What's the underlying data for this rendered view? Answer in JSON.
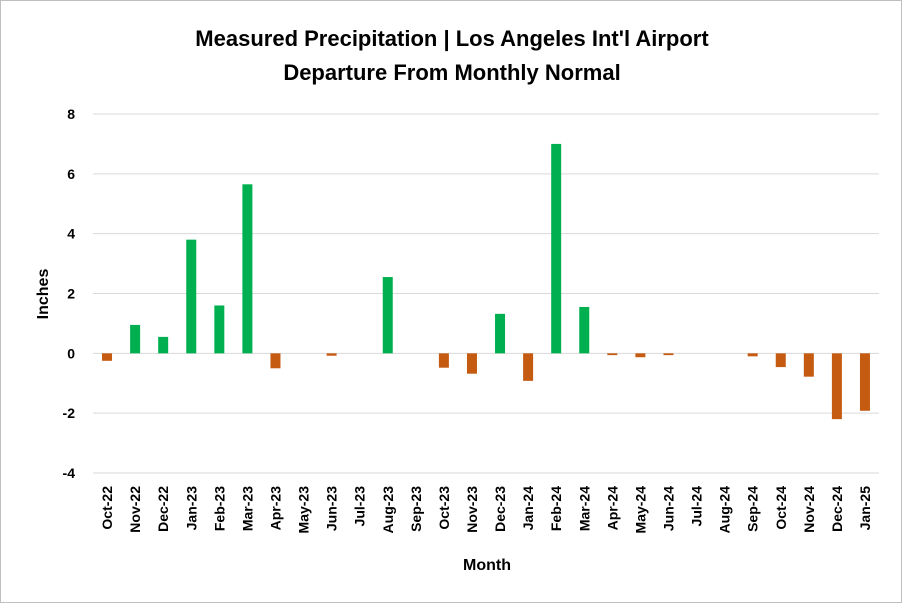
{
  "chart_data": {
    "type": "bar",
    "title": "Measured Precipitation | Los Angeles Int'l Airport",
    "subtitle": "Departure From Monthly Normal",
    "xlabel": "Month",
    "ylabel": "Inches",
    "ylim": [
      -4,
      8
    ],
    "yticks": [
      "8",
      "6",
      "4",
      "2",
      "0",
      "-2",
      "-4"
    ],
    "grid": true,
    "legend": "none",
    "colors": {
      "positive": "#00b050",
      "negative": "#c55a11",
      "gridline": "#d9d9d9"
    },
    "categories": [
      "Oct-22",
      "Nov-22",
      "Dec-22",
      "Jan-23",
      "Feb-23",
      "Mar-23",
      "Apr-23",
      "May-23",
      "Jun-23",
      "Jul-23",
      "Aug-23",
      "Sep-23",
      "Oct-23",
      "Nov-23",
      "Dec-23",
      "Jan-24",
      "Feb-24",
      "Mar-24",
      "Apr-24",
      "May-24",
      "Jun-24",
      "Jul-24",
      "Aug-24",
      "Sep-24",
      "Oct-24",
      "Nov-24",
      "Dec-24",
      "Jan-25"
    ],
    "values": [
      -0.25,
      0.95,
      0.55,
      3.8,
      1.6,
      5.65,
      -0.5,
      0.0,
      -0.08,
      0.0,
      2.55,
      0.0,
      -0.48,
      -0.68,
      1.32,
      -0.92,
      7.0,
      1.55,
      -0.06,
      -0.13,
      -0.06,
      0.0,
      0.0,
      -0.1,
      -0.46,
      -0.78,
      -2.2,
      -1.92
    ]
  }
}
